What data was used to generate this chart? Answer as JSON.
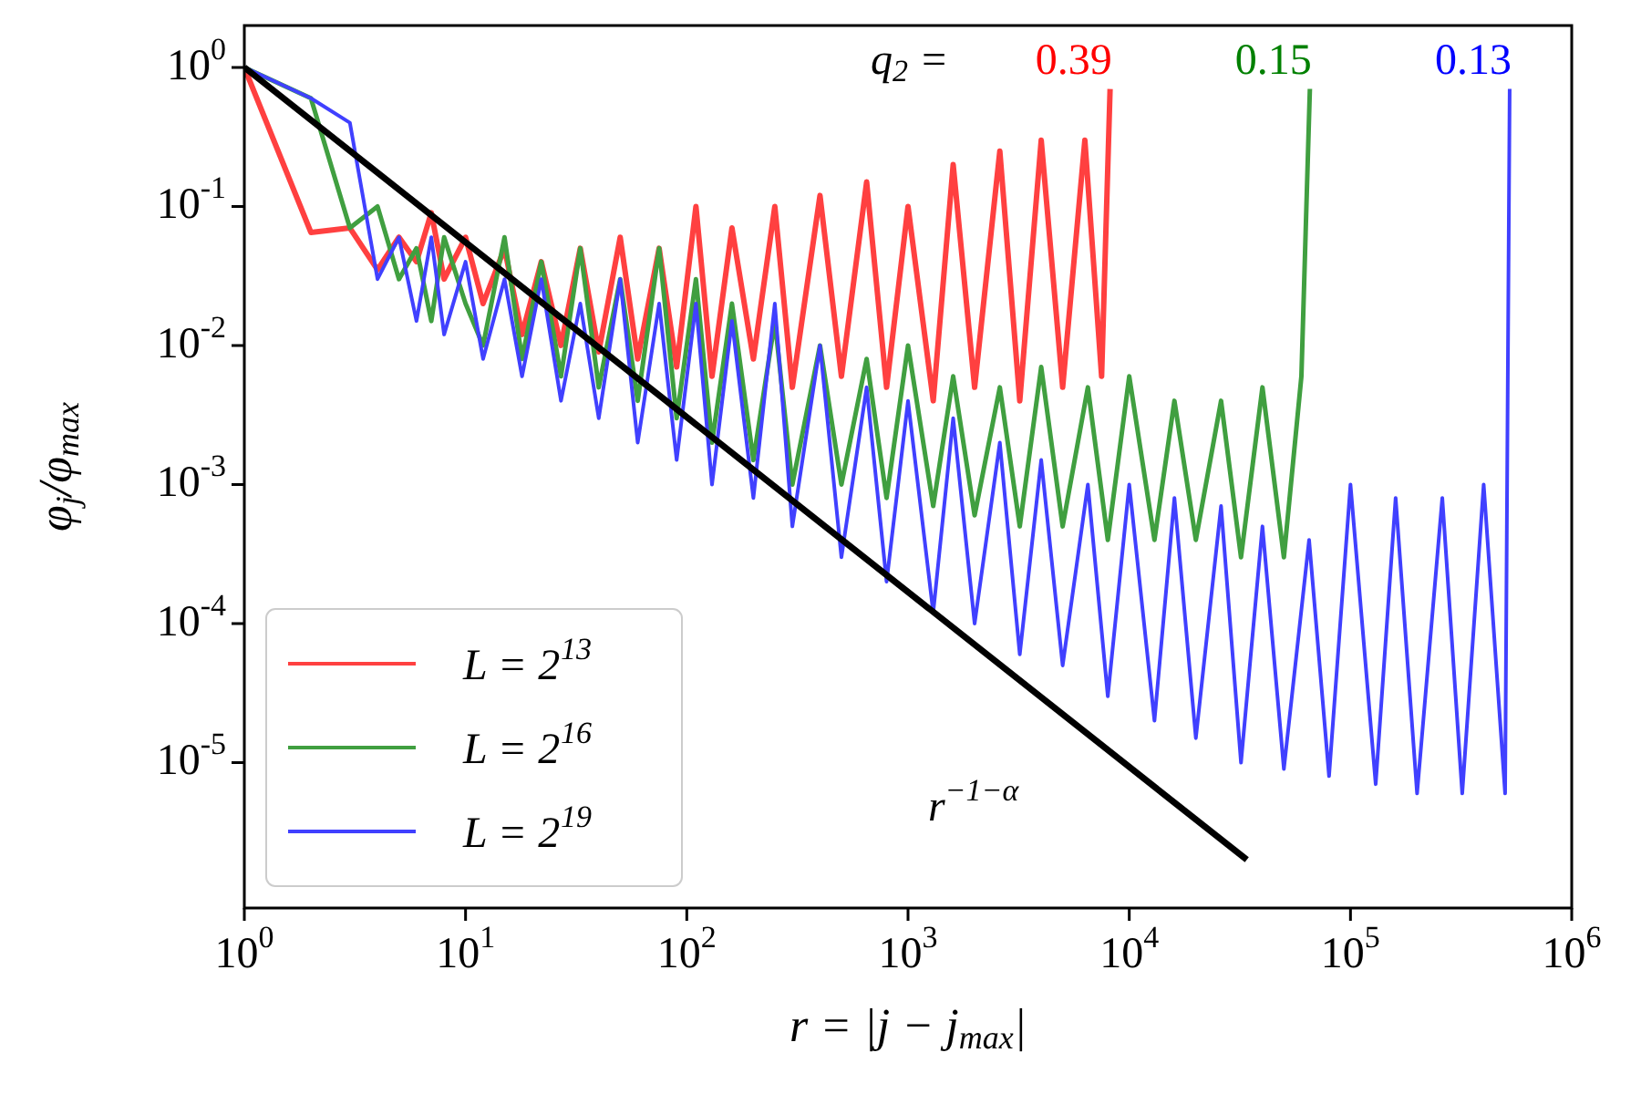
{
  "chart_data": {
    "type": "line",
    "xlabel": "r = |j − j$_{max}$|",
    "ylabel": "φ$_{j}$/φ$_{max}$",
    "log": "xy",
    "grid": false,
    "legend": "bottom left",
    "marker": "none",
    "xlim": [
      1,
      1000000
    ],
    "ylim": [
      9e-07,
      2
    ],
    "xticks": [
      {
        "value": 1,
        "label": "10$^{0}$"
      },
      {
        "value": 10,
        "label": "10$^{1}$"
      },
      {
        "value": 100,
        "label": "10$^{2}$"
      },
      {
        "value": 1000,
        "label": "10$^{3}$"
      },
      {
        "value": 10000,
        "label": "10$^{4}$"
      },
      {
        "value": 100000,
        "label": "10$^{5}$"
      },
      {
        "value": 1000000,
        "label": "10$^{6}$"
      }
    ],
    "yticks": [
      {
        "value": 1e-05,
        "label": "10$^{-5}$"
      },
      {
        "value": 0.0001,
        "label": "10$^{-4}$"
      },
      {
        "value": 0.001,
        "label": "10$^{-3}$"
      },
      {
        "value": 0.01,
        "label": "10$^{-2}$"
      },
      {
        "value": 0.1,
        "label": "10$^{-1}$"
      },
      {
        "value": 1,
        "label": "10$^{0}$"
      }
    ],
    "series": [
      {
        "name": "L = 2$^{13}$",
        "color": "#ff4040",
        "x": [
          1,
          2,
          3,
          4,
          5,
          6,
          7,
          8,
          10,
          12,
          15,
          18,
          22,
          27,
          33,
          40,
          50,
          60,
          75,
          90,
          110,
          130,
          160,
          200,
          250,
          300,
          400,
          500,
          650,
          800,
          1000,
          1300,
          1600,
          2000,
          2600,
          3200,
          4000,
          5000,
          6300,
          7500,
          8192
        ],
        "values": [
          1,
          0.065,
          0.07,
          0.035,
          0.06,
          0.04,
          0.09,
          0.03,
          0.06,
          0.02,
          0.05,
          0.012,
          0.04,
          0.01,
          0.05,
          0.009,
          0.06,
          0.008,
          0.05,
          0.007,
          0.1,
          0.006,
          0.07,
          0.008,
          0.1,
          0.005,
          0.12,
          0.006,
          0.15,
          0.005,
          0.1,
          0.004,
          0.2,
          0.005,
          0.25,
          0.004,
          0.3,
          0.005,
          0.3,
          0.006,
          0.7
        ]
      },
      {
        "name": "L = 2$^{16}$",
        "color": "#409f40",
        "x": [
          1,
          2,
          3,
          4,
          5,
          6,
          7,
          8,
          10,
          12,
          15,
          18,
          22,
          27,
          33,
          40,
          50,
          60,
          75,
          90,
          110,
          130,
          160,
          200,
          250,
          300,
          400,
          500,
          650,
          800,
          1000,
          1300,
          1600,
          2000,
          2600,
          3200,
          4000,
          5000,
          6500,
          8000,
          10000,
          13000,
          16000,
          20000,
          26000,
          32000,
          40000,
          50000,
          60000,
          65536
        ],
        "values": [
          1,
          0.6,
          0.07,
          0.1,
          0.03,
          0.05,
          0.015,
          0.06,
          0.02,
          0.01,
          0.06,
          0.008,
          0.04,
          0.006,
          0.05,
          0.005,
          0.03,
          0.004,
          0.05,
          0.003,
          0.03,
          0.002,
          0.02,
          0.0015,
          0.015,
          0.001,
          0.01,
          0.001,
          0.008,
          0.0008,
          0.01,
          0.0007,
          0.006,
          0.0006,
          0.005,
          0.0005,
          0.007,
          0.0005,
          0.005,
          0.0004,
          0.006,
          0.0004,
          0.004,
          0.0004,
          0.004,
          0.0003,
          0.005,
          0.0003,
          0.006,
          0.7
        ]
      },
      {
        "name": "L = 2$^{19}$",
        "color": "#4040ff",
        "x": [
          1,
          2,
          3,
          4,
          5,
          6,
          7,
          8,
          10,
          12,
          15,
          18,
          22,
          27,
          33,
          40,
          50,
          60,
          75,
          90,
          110,
          130,
          160,
          200,
          250,
          300,
          400,
          500,
          650,
          800,
          1000,
          1300,
          1600,
          2000,
          2600,
          3200,
          4000,
          5000,
          6500,
          8000,
          10000,
          13000,
          16000,
          20000,
          26000,
          32000,
          40000,
          50000,
          65000,
          80000,
          100000,
          130000,
          160000,
          200000,
          260000,
          320000,
          400000,
          500000,
          524288
        ],
        "values": [
          1,
          0.6,
          0.4,
          0.03,
          0.06,
          0.015,
          0.06,
          0.012,
          0.04,
          0.008,
          0.03,
          0.006,
          0.03,
          0.004,
          0.02,
          0.003,
          0.03,
          0.002,
          0.02,
          0.0015,
          0.02,
          0.001,
          0.015,
          0.0008,
          0.02,
          0.0005,
          0.01,
          0.0003,
          0.005,
          0.0002,
          0.004,
          0.00012,
          0.003,
          0.0001,
          0.002,
          6e-05,
          0.0015,
          5e-05,
          0.001,
          3e-05,
          0.001,
          2e-05,
          0.0008,
          1.5e-05,
          0.0007,
          1e-05,
          0.0005,
          9e-06,
          0.0004,
          8e-06,
          0.001,
          7e-06,
          0.0008,
          6e-06,
          0.0008,
          6e-06,
          0.001,
          6e-06,
          0.7
        ]
      },
      {
        "color": "#000000",
        "x": [
          1,
          34000
        ],
        "values": [
          1,
          2e-06
        ]
      }
    ],
    "annotations": [
      "r$^{−1−α}$",
      "q$_{2}$ =",
      "0.39",
      "0.15",
      "0.13"
    ]
  }
}
